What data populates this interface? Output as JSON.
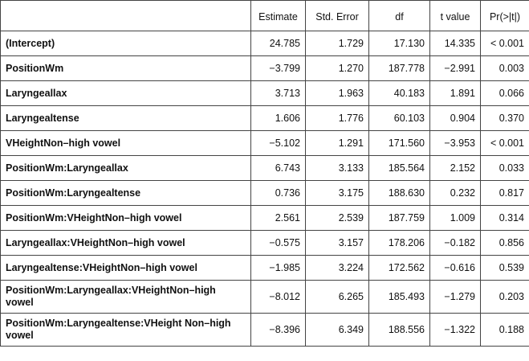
{
  "table": {
    "columns": [
      "",
      "Estimate",
      "Std. Error",
      "df",
      "t value",
      "Pr(>|t|)"
    ],
    "rows": [
      {
        "term": "(Intercept)",
        "estimate": "24.785",
        "std_error": "1.729",
        "df": "17.130",
        "t_value": "14.335",
        "p": "< 0.001"
      },
      {
        "term": "PositionWm",
        "estimate": "−3.799",
        "std_error": "1.270",
        "df": "187.778",
        "t_value": "−2.991",
        "p": "0.003"
      },
      {
        "term": "Laryngeallax",
        "estimate": "3.713",
        "std_error": "1.963",
        "df": "40.183",
        "t_value": "1.891",
        "p": "0.066"
      },
      {
        "term": "Laryngealtense",
        "estimate": "1.606",
        "std_error": "1.776",
        "df": "60.103",
        "t_value": "0.904",
        "p": "0.370"
      },
      {
        "term": "VHeightNon–high vowel",
        "estimate": "−5.102",
        "std_error": "1.291",
        "df": "171.560",
        "t_value": "−3.953",
        "p": "< 0.001"
      },
      {
        "term": "PositionWm:Laryngeallax",
        "estimate": "6.743",
        "std_error": "3.133",
        "df": "185.564",
        "t_value": "2.152",
        "p": "0.033"
      },
      {
        "term": "PositionWm:Laryngealtense",
        "estimate": "0.736",
        "std_error": "3.175",
        "df": "188.630",
        "t_value": "0.232",
        "p": "0.817"
      },
      {
        "term": "PositionWm:VHeightNon–high vowel",
        "estimate": "2.561",
        "std_error": "2.539",
        "df": "187.759",
        "t_value": "1.009",
        "p": "0.314"
      },
      {
        "term": "Laryngeallax:VHeightNon–high vowel",
        "estimate": "−0.575",
        "std_error": "3.157",
        "df": "178.206",
        "t_value": "−0.182",
        "p": "0.856"
      },
      {
        "term": "Laryngealtense:VHeightNon–high vowel",
        "estimate": "−1.985",
        "std_error": "3.224",
        "df": "172.562",
        "t_value": "−0.616",
        "p": "0.539"
      },
      {
        "term": "PositionWm:Laryngeallax:VHeightNon–high vowel",
        "estimate": "−8.012",
        "std_error": "6.265",
        "df": "185.493",
        "t_value": "−1.279",
        "p": "0.203"
      },
      {
        "term": "PositionWm:Laryngealtense:VHeight Non–high vowel",
        "estimate": "−8.396",
        "std_error": "6.349",
        "df": "188.556",
        "t_value": "−1.322",
        "p": "0.188"
      }
    ]
  }
}
